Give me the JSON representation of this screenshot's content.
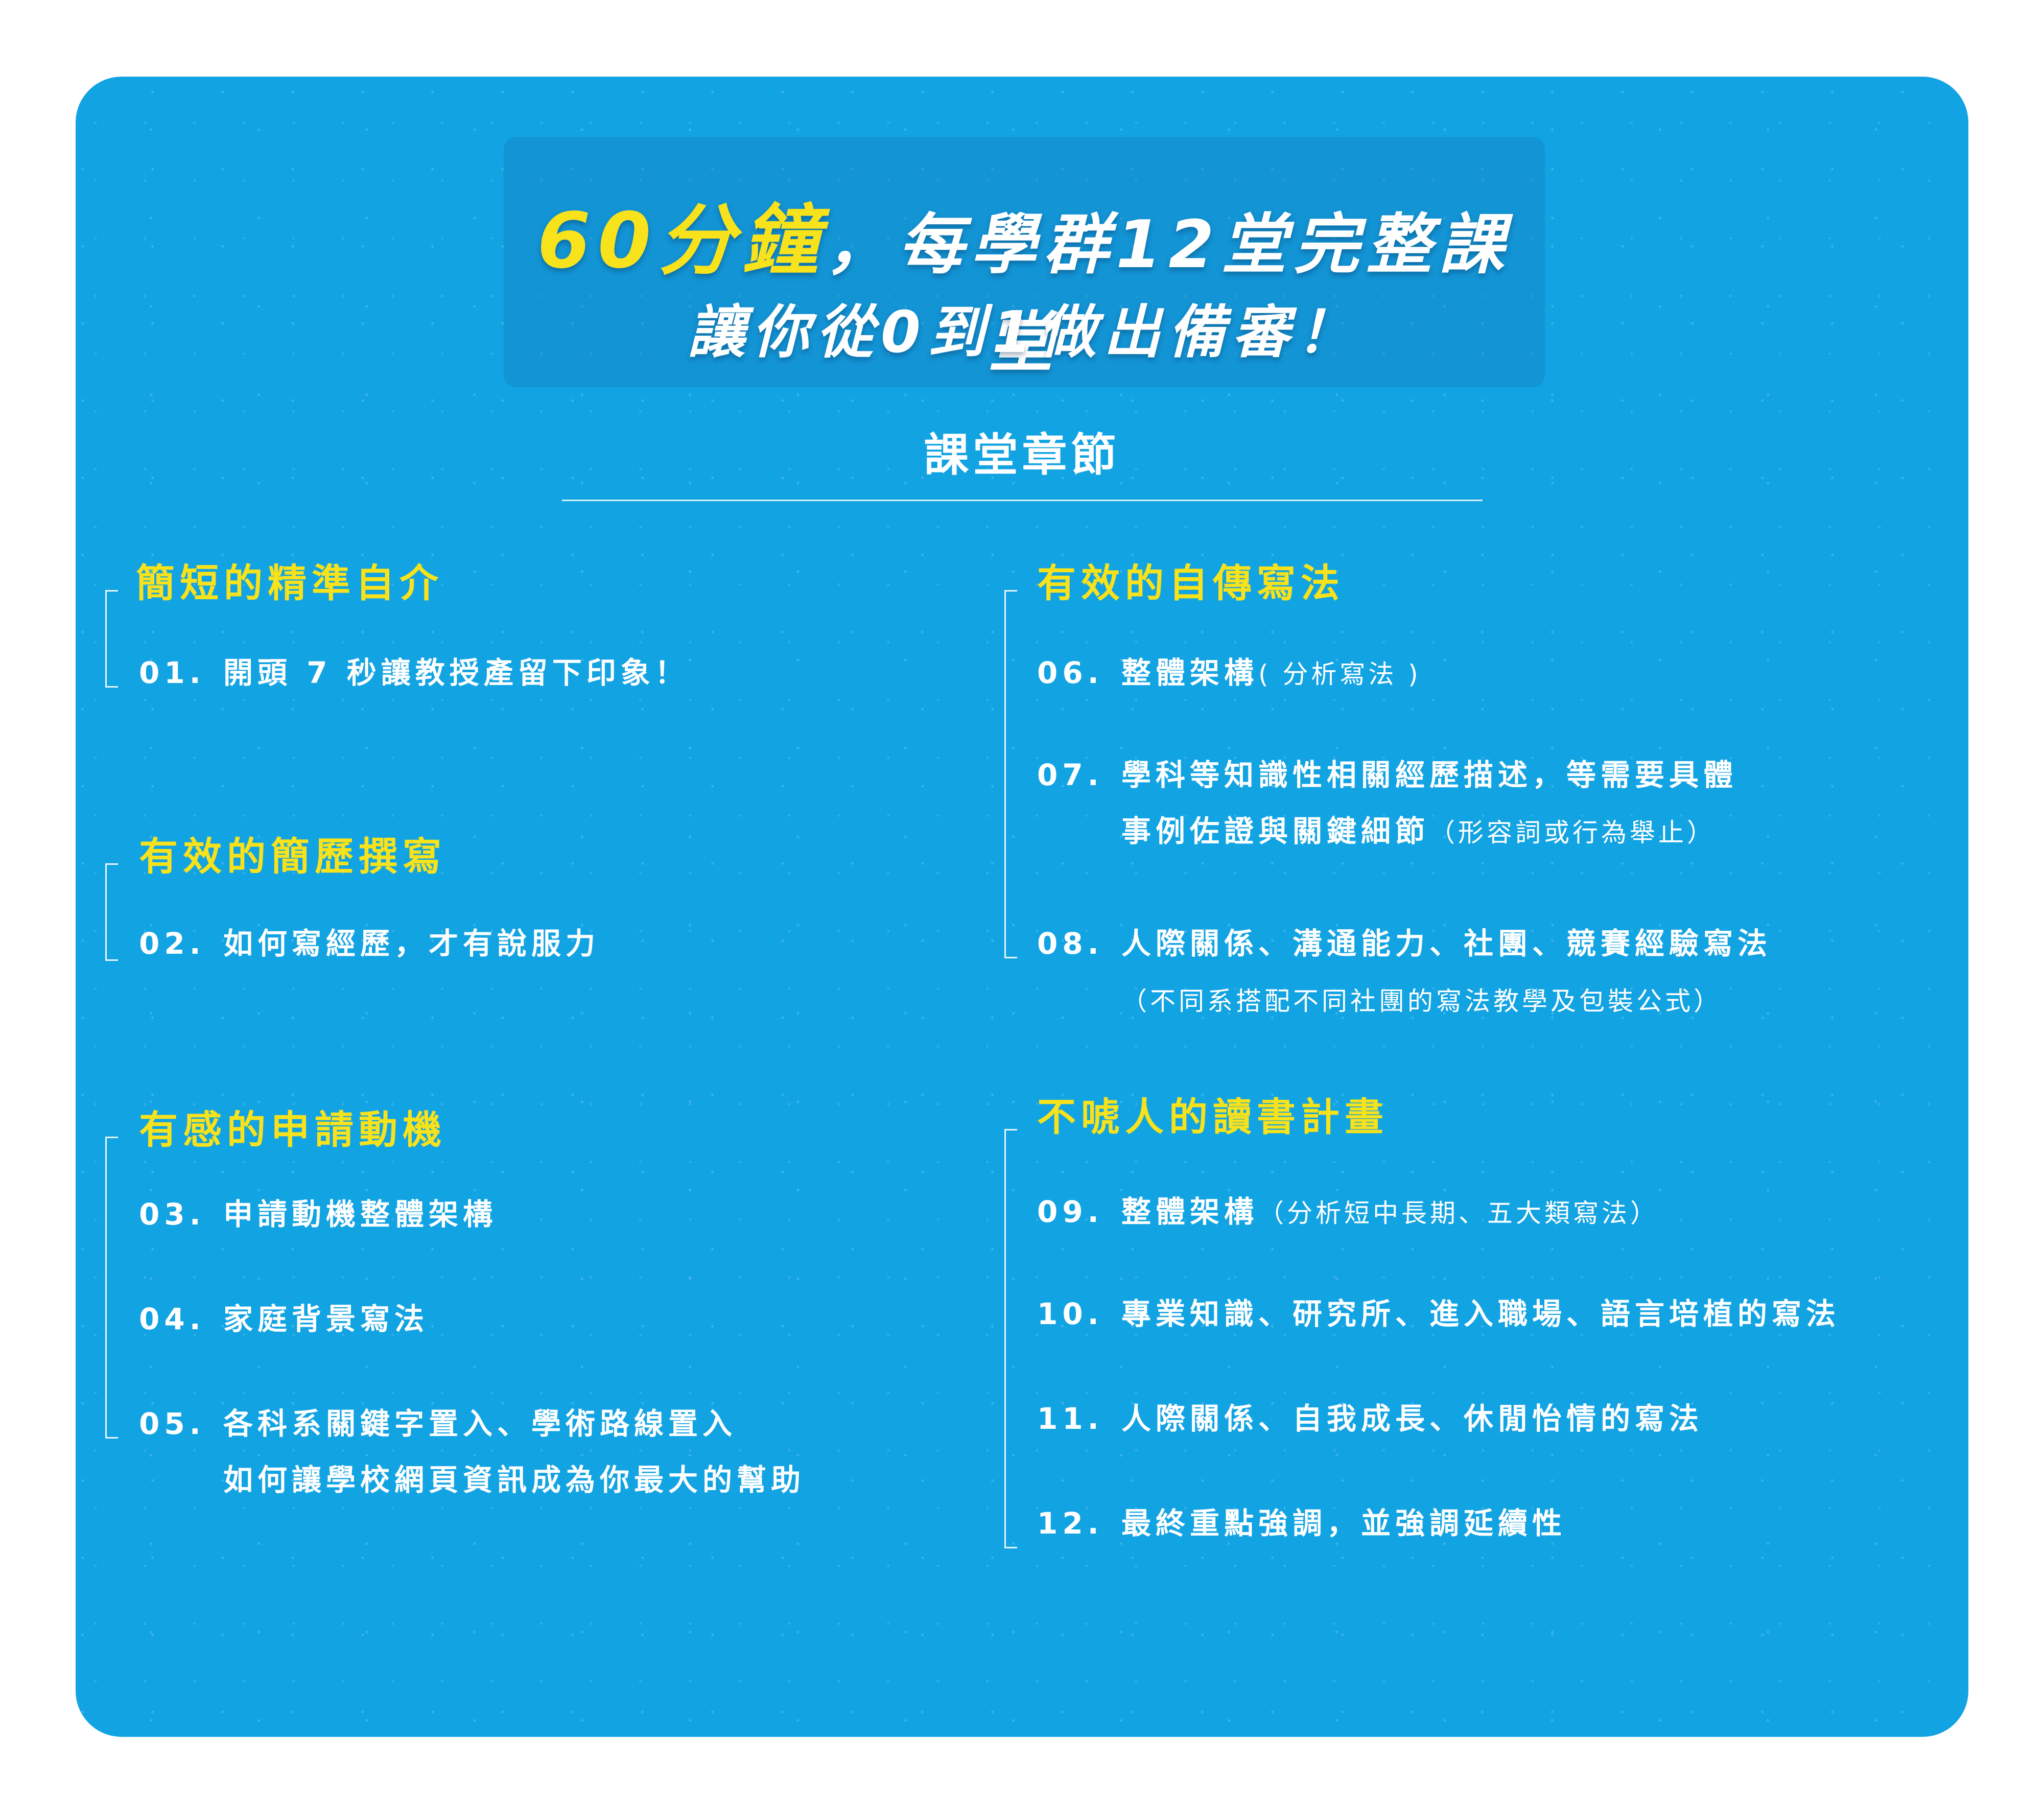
{
  "headline": {
    "line1_highlight": "60分鐘",
    "line1_rest": "，每學群12堂完整課堂",
    "line2": "讓你從0到1做出備審！"
  },
  "section_title": "課堂章節",
  "groups": [
    {
      "title": "簡短的精準自介",
      "items": [
        {
          "num": "01.",
          "text": "開頭 7 秒讓教授產留下印象！"
        }
      ]
    },
    {
      "title": "有效的簡歷撰寫",
      "items": [
        {
          "num": "02.",
          "text": "如何寫經歷，才有說服力"
        }
      ]
    },
    {
      "title": "有感的申請動機",
      "items": [
        {
          "num": "03.",
          "text": "申請動機整體架構"
        },
        {
          "num": "04.",
          "text": "家庭背景寫法"
        },
        {
          "num": "05.",
          "text": "各科系關鍵字置入、學術路線置入",
          "line2": "如何讓學校網頁資訊成為你最大的幫助"
        }
      ]
    },
    {
      "title": "有效的自傳寫法",
      "items": [
        {
          "num": "06.",
          "text": "整體架構",
          "note": "( 分析寫法 )"
        },
        {
          "num": "07.",
          "text": "學科等知識性相關經歷描述，等需要具體",
          "line2": "事例佐證與關鍵細節",
          "note2": "（形容詞或行為舉止）"
        },
        {
          "num": "08.",
          "text": "人際關係、溝通能力、社團、競賽經驗寫法",
          "note2": "（不同系搭配不同社團的寫法教學及包裝公式）"
        }
      ]
    },
    {
      "title": "不唬人的讀書計畫",
      "items": [
        {
          "num": "09.",
          "text": "整體架構",
          "note": "（分析短中長期、五大類寫法）"
        },
        {
          "num": "10.",
          "text": "專業知識、研究所、進入職場、語言培植的寫法"
        },
        {
          "num": "11.",
          "text": "人際關係、自我成長、休閒怡情的寫法"
        },
        {
          "num": "12.",
          "text": "最終重點強調，並強調延續性"
        }
      ]
    }
  ]
}
